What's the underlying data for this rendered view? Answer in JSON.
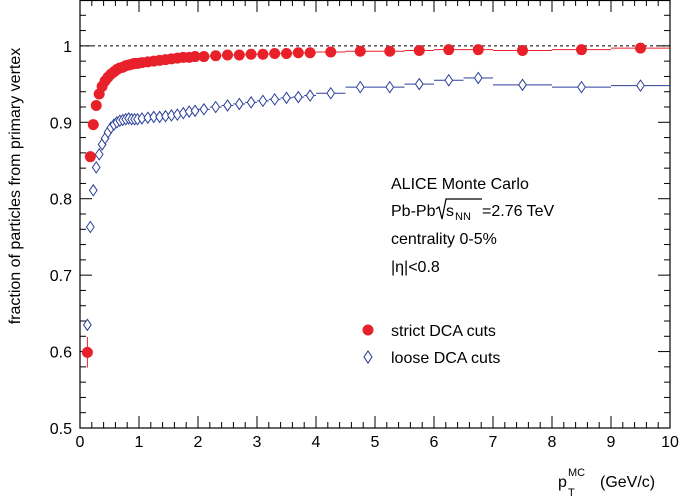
{
  "chart_data": {
    "type": "scatter",
    "title": "",
    "xlabel": {
      "main": "p",
      "sub": "T",
      "sup": "MC",
      "unit": "(GeV/c)"
    },
    "ylabel": "fraction of particles from primary vertex",
    "xlim": [
      0,
      10
    ],
    "ylim": [
      0.5,
      1.06
    ],
    "x_ticks": [
      "0",
      "1",
      "2",
      "3",
      "4",
      "5",
      "6",
      "7",
      "8",
      "9",
      "10"
    ],
    "y_ticks": [
      "0.5",
      "0.6",
      "0.7",
      "0.8",
      "0.9",
      "1"
    ],
    "reference_line": {
      "y": 1.0,
      "style": "dashed"
    },
    "grid": false,
    "legend_position": "lower-right",
    "annotations": [
      "ALICE  Monte Carlo",
      "Pb-Pb",
      "centrality 0-5%",
      "|η|<0.8"
    ],
    "annotation_energy": {
      "prefix": "s",
      "sub": "NN",
      "suffix": "=2.76 TeV"
    },
    "series": [
      {
        "name": "strict DCA cuts",
        "marker": "filled-circle",
        "color": "#e8202a",
        "x": [
          0.125,
          0.175,
          0.225,
          0.275,
          0.325,
          0.375,
          0.425,
          0.475,
          0.525,
          0.575,
          0.625,
          0.675,
          0.725,
          0.775,
          0.825,
          0.875,
          0.925,
          0.975,
          1.05,
          1.15,
          1.25,
          1.35,
          1.45,
          1.55,
          1.65,
          1.75,
          1.85,
          1.95,
          2.1,
          2.3,
          2.5,
          2.7,
          2.9,
          3.1,
          3.3,
          3.5,
          3.7,
          3.9,
          4.25,
          4.75,
          5.25,
          5.75,
          6.25,
          6.75,
          7.5,
          8.5,
          9.5
        ],
        "y": [
          0.599,
          0.855,
          0.897,
          0.922,
          0.937,
          0.947,
          0.954,
          0.959,
          0.963,
          0.966,
          0.969,
          0.971,
          0.972,
          0.974,
          0.975,
          0.976,
          0.977,
          0.977,
          0.978,
          0.979,
          0.98,
          0.981,
          0.982,
          0.983,
          0.984,
          0.985,
          0.985,
          0.986,
          0.986,
          0.987,
          0.988,
          0.988,
          0.989,
          0.989,
          0.99,
          0.99,
          0.991,
          0.991,
          0.992,
          0.993,
          0.993,
          0.994,
          0.995,
          0.995,
          0.994,
          0.995,
          0.997
        ],
        "yerr": [
          0.02,
          0,
          0,
          0,
          0,
          0,
          0,
          0,
          0,
          0,
          0,
          0,
          0,
          0,
          0,
          0,
          0,
          0,
          0,
          0,
          0,
          0,
          0,
          0,
          0,
          0,
          0,
          0,
          0,
          0,
          0,
          0,
          0,
          0,
          0,
          0,
          0,
          0,
          0,
          0,
          0,
          0,
          0,
          0,
          0,
          0,
          0
        ],
        "xerr": [
          0.025,
          0.025,
          0.025,
          0.025,
          0.025,
          0.025,
          0.025,
          0.025,
          0.025,
          0.025,
          0.025,
          0.025,
          0.025,
          0.025,
          0.025,
          0.025,
          0.025,
          0.025,
          0.05,
          0.05,
          0.05,
          0.05,
          0.05,
          0.05,
          0.05,
          0.05,
          0.05,
          0.05,
          0.1,
          0.1,
          0.1,
          0.1,
          0.1,
          0.1,
          0.1,
          0.1,
          0.1,
          0.1,
          0.25,
          0.25,
          0.25,
          0.25,
          0.25,
          0.25,
          0.5,
          0.5,
          0.5
        ]
      },
      {
        "name": "loose DCA cuts",
        "marker": "open-diamond",
        "color": "#2a3f9a",
        "x": [
          0.125,
          0.175,
          0.225,
          0.275,
          0.325,
          0.375,
          0.425,
          0.475,
          0.525,
          0.575,
          0.625,
          0.675,
          0.725,
          0.775,
          0.825,
          0.875,
          0.925,
          0.975,
          1.05,
          1.15,
          1.25,
          1.35,
          1.45,
          1.55,
          1.65,
          1.75,
          1.85,
          1.95,
          2.1,
          2.3,
          2.5,
          2.7,
          2.9,
          3.1,
          3.3,
          3.5,
          3.7,
          3.9,
          4.25,
          4.75,
          5.25,
          5.75,
          6.25,
          6.75,
          7.5,
          8.5,
          9.5
        ],
        "y": [
          0.635,
          0.763,
          0.811,
          0.841,
          0.858,
          0.871,
          0.879,
          0.887,
          0.893,
          0.897,
          0.9,
          0.902,
          0.903,
          0.904,
          0.905,
          0.904,
          0.904,
          0.904,
          0.905,
          0.906,
          0.907,
          0.907,
          0.908,
          0.909,
          0.91,
          0.912,
          0.914,
          0.915,
          0.917,
          0.92,
          0.922,
          0.924,
          0.926,
          0.928,
          0.93,
          0.932,
          0.933,
          0.935,
          0.938,
          0.946,
          0.946,
          0.95,
          0.955,
          0.958,
          0.949,
          0.946,
          0.948
        ],
        "xerr": [
          0.025,
          0.025,
          0.025,
          0.025,
          0.025,
          0.025,
          0.025,
          0.025,
          0.025,
          0.025,
          0.025,
          0.025,
          0.025,
          0.025,
          0.025,
          0.025,
          0.025,
          0.025,
          0.05,
          0.05,
          0.05,
          0.05,
          0.05,
          0.05,
          0.05,
          0.05,
          0.05,
          0.05,
          0.1,
          0.1,
          0.1,
          0.1,
          0.1,
          0.1,
          0.1,
          0.1,
          0.1,
          0.1,
          0.25,
          0.25,
          0.25,
          0.25,
          0.25,
          0.25,
          0.5,
          0.5,
          0.5
        ]
      }
    ]
  }
}
